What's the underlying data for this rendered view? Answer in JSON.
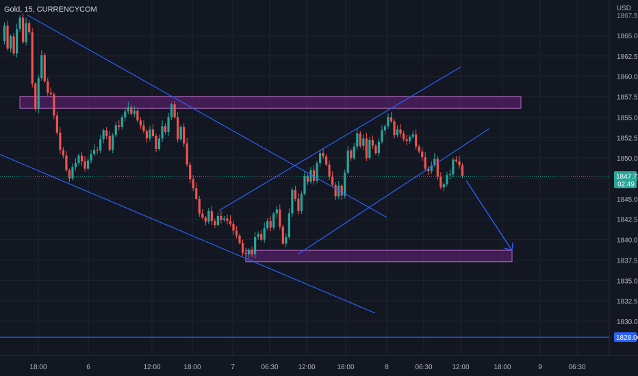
{
  "symbol": "Gold, 15, CURRENCYCOM",
  "currency": "USD",
  "chart_data": {
    "type": "candlestick",
    "title": "Gold, 15, CURRENCYCOM",
    "ylabel": "USD",
    "ylim": [
      1827.5,
      1868.5
    ],
    "y_ticks": [
      "1865.00",
      "1862.50",
      "1860.00",
      "1857.50",
      "1855.00",
      "1852.50",
      "1850.00",
      "1847.50",
      "1845.00",
      "1842.50",
      "1840.00",
      "1837.50",
      "1835.00",
      "1832.50",
      "1830.00"
    ],
    "top_partial_tick": "1867.50",
    "x_ticks": [
      "18:00",
      "6",
      "12:00",
      "18:00",
      "7",
      "06:30",
      "12:00",
      "18:00",
      "8",
      "06:30",
      "12:00",
      "18:00",
      "9",
      "06:30"
    ],
    "current_price": "1847.73",
    "countdown": "02:49",
    "horizontal_line_price": "1828.06",
    "colors": {
      "background": "#131722",
      "up": "#26a69a",
      "down": "#ef5350",
      "trendline": "#2962ff",
      "zone_fill": "rgba(156,39,176,0.35)",
      "zone_border": "#ba68c8",
      "price_badge": "#26a69a",
      "line_badge": "#2962ff"
    },
    "resistance_zone": {
      "low": 1856.1,
      "high": 1857.5
    },
    "support_zone": {
      "low": 1837.3,
      "high": 1838.7
    },
    "candle_path": [
      1864.3,
      1866.2,
      1863.4,
      1864.9,
      1862.8,
      1865.8,
      1867.2,
      1864.2,
      1866.5,
      1865.4,
      1859.1,
      1856.0,
      1859.8,
      1862.6,
      1859.4,
      1858.0,
      1857.8,
      1855.2,
      1853.1,
      1851.0,
      1850.3,
      1848.5,
      1847.5,
      1848.9,
      1849.4,
      1850.3,
      1849.6,
      1848.7,
      1849.7,
      1850.5,
      1851.0,
      1850.9,
      1852.3,
      1853.4,
      1852.7,
      1851.0,
      1852.8,
      1854.0,
      1853.8,
      1855.0,
      1855.7,
      1856.2,
      1855.4,
      1855.8,
      1854.6,
      1854.0,
      1853.3,
      1852.4,
      1853.5,
      1852.7,
      1851.1,
      1852.4,
      1853.9,
      1853.2,
      1855.0,
      1856.6,
      1855.0,
      1852.3,
      1853.8,
      1851.8,
      1849.2,
      1847.4,
      1846.3,
      1845.0,
      1843.2,
      1842.7,
      1842.2,
      1843.5,
      1842.3,
      1841.8,
      1842.9,
      1842.4,
      1842.6,
      1842.3,
      1841.9,
      1841.1,
      1840.5,
      1839.6,
      1838.4,
      1838.2,
      1838.7,
      1838.2,
      1840.3,
      1840.7,
      1840.0,
      1841.4,
      1842.3,
      1841.5,
      1843.2,
      1843.7,
      1841.6,
      1839.5,
      1840.3,
      1843.2,
      1846.1,
      1845.0,
      1843.5,
      1845.6,
      1847.8,
      1847.1,
      1848.5,
      1847.2,
      1849.4,
      1850.6,
      1850.2,
      1849.2,
      1847.7,
      1846.7,
      1845.3,
      1846.6,
      1845.4,
      1848.2,
      1850.9,
      1850.0,
      1851.4,
      1853.0,
      1851.5,
      1852.4,
      1850.0,
      1852.2,
      1851.5,
      1850.6,
      1852.0,
      1853.4,
      1853.9,
      1855.0,
      1854.5,
      1852.8,
      1853.5,
      1853.0,
      1852.3,
      1852.1,
      1852.6,
      1852.9,
      1851.4,
      1850.8,
      1850.1,
      1848.7,
      1848.4,
      1849.1,
      1849.9,
      1847.7,
      1846.4,
      1846.8,
      1847.9,
      1848.0,
      1849.8,
      1849.6,
      1849.1,
      1847.8
    ]
  }
}
